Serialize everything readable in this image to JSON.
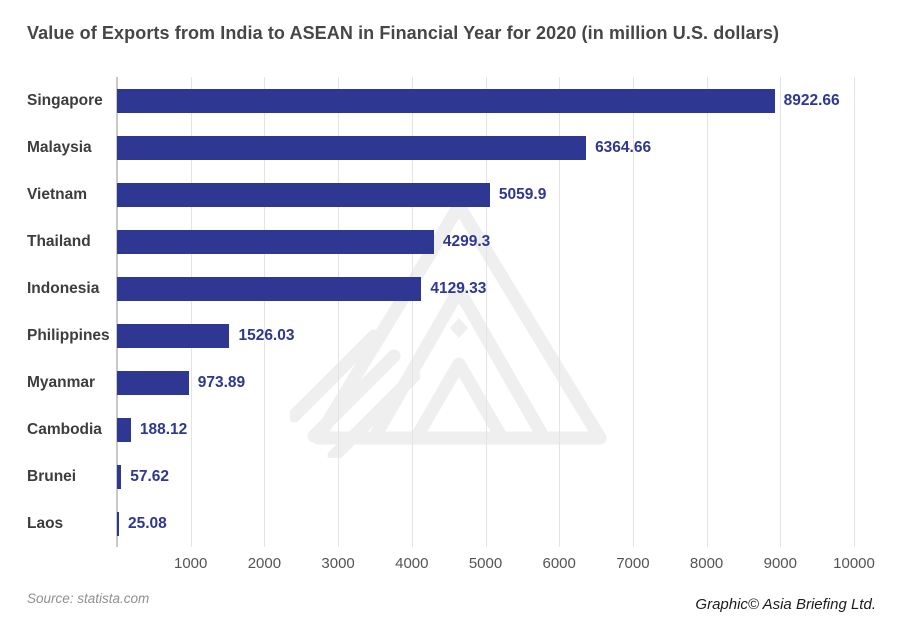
{
  "page": {
    "title": "Value of Exports from India to ASEAN in Financial Year for 2020 (in million U.S. dollars)",
    "source": "Source: statista.com",
    "credit": "Graphic© Asia Briefing Ltd."
  },
  "colors": {
    "bar": "#2e3791",
    "value_label": "#2e3791",
    "category_label": "#3d3d3d",
    "title": "#464646",
    "gridline": "#e4e4e4",
    "axis_line": "#c9c9c9",
    "tick_label": "#545454",
    "source_text": "#8f8f8f",
    "credit_text": "#1c1c1c",
    "watermark": "#efefef",
    "background": "#ffffff"
  },
  "watermark": {
    "name": "asia-briefing-logo"
  },
  "chart_data": {
    "type": "bar",
    "orientation": "horizontal",
    "title": "Value of Exports from India to ASEAN in Financial Year for 2020 (in million U.S. dollars)",
    "categories": [
      "Singapore",
      "Malaysia",
      "Vietnam",
      "Thailand",
      "Indonesia",
      "Philippines",
      "Myanmar",
      "Cambodia",
      "Brunei",
      "Laos"
    ],
    "values": [
      8922.66,
      6364.66,
      5059.9,
      4299.3,
      4129.33,
      1526.03,
      973.89,
      188.12,
      57.62,
      25.08
    ],
    "value_labels": [
      "8922.66",
      "6364.66",
      "5059.9",
      "4299.3",
      "4129.33",
      "1526.03",
      "973.89",
      "188.12",
      "57.62",
      "25.08"
    ],
    "xlabel": "",
    "ylabel": "",
    "xlim": [
      0,
      10000
    ],
    "x_ticks": [
      1000,
      2000,
      3000,
      4000,
      5000,
      6000,
      7000,
      8000,
      9000,
      10000
    ],
    "grid": true,
    "legend": false,
    "bar_color": "#2e3791"
  }
}
